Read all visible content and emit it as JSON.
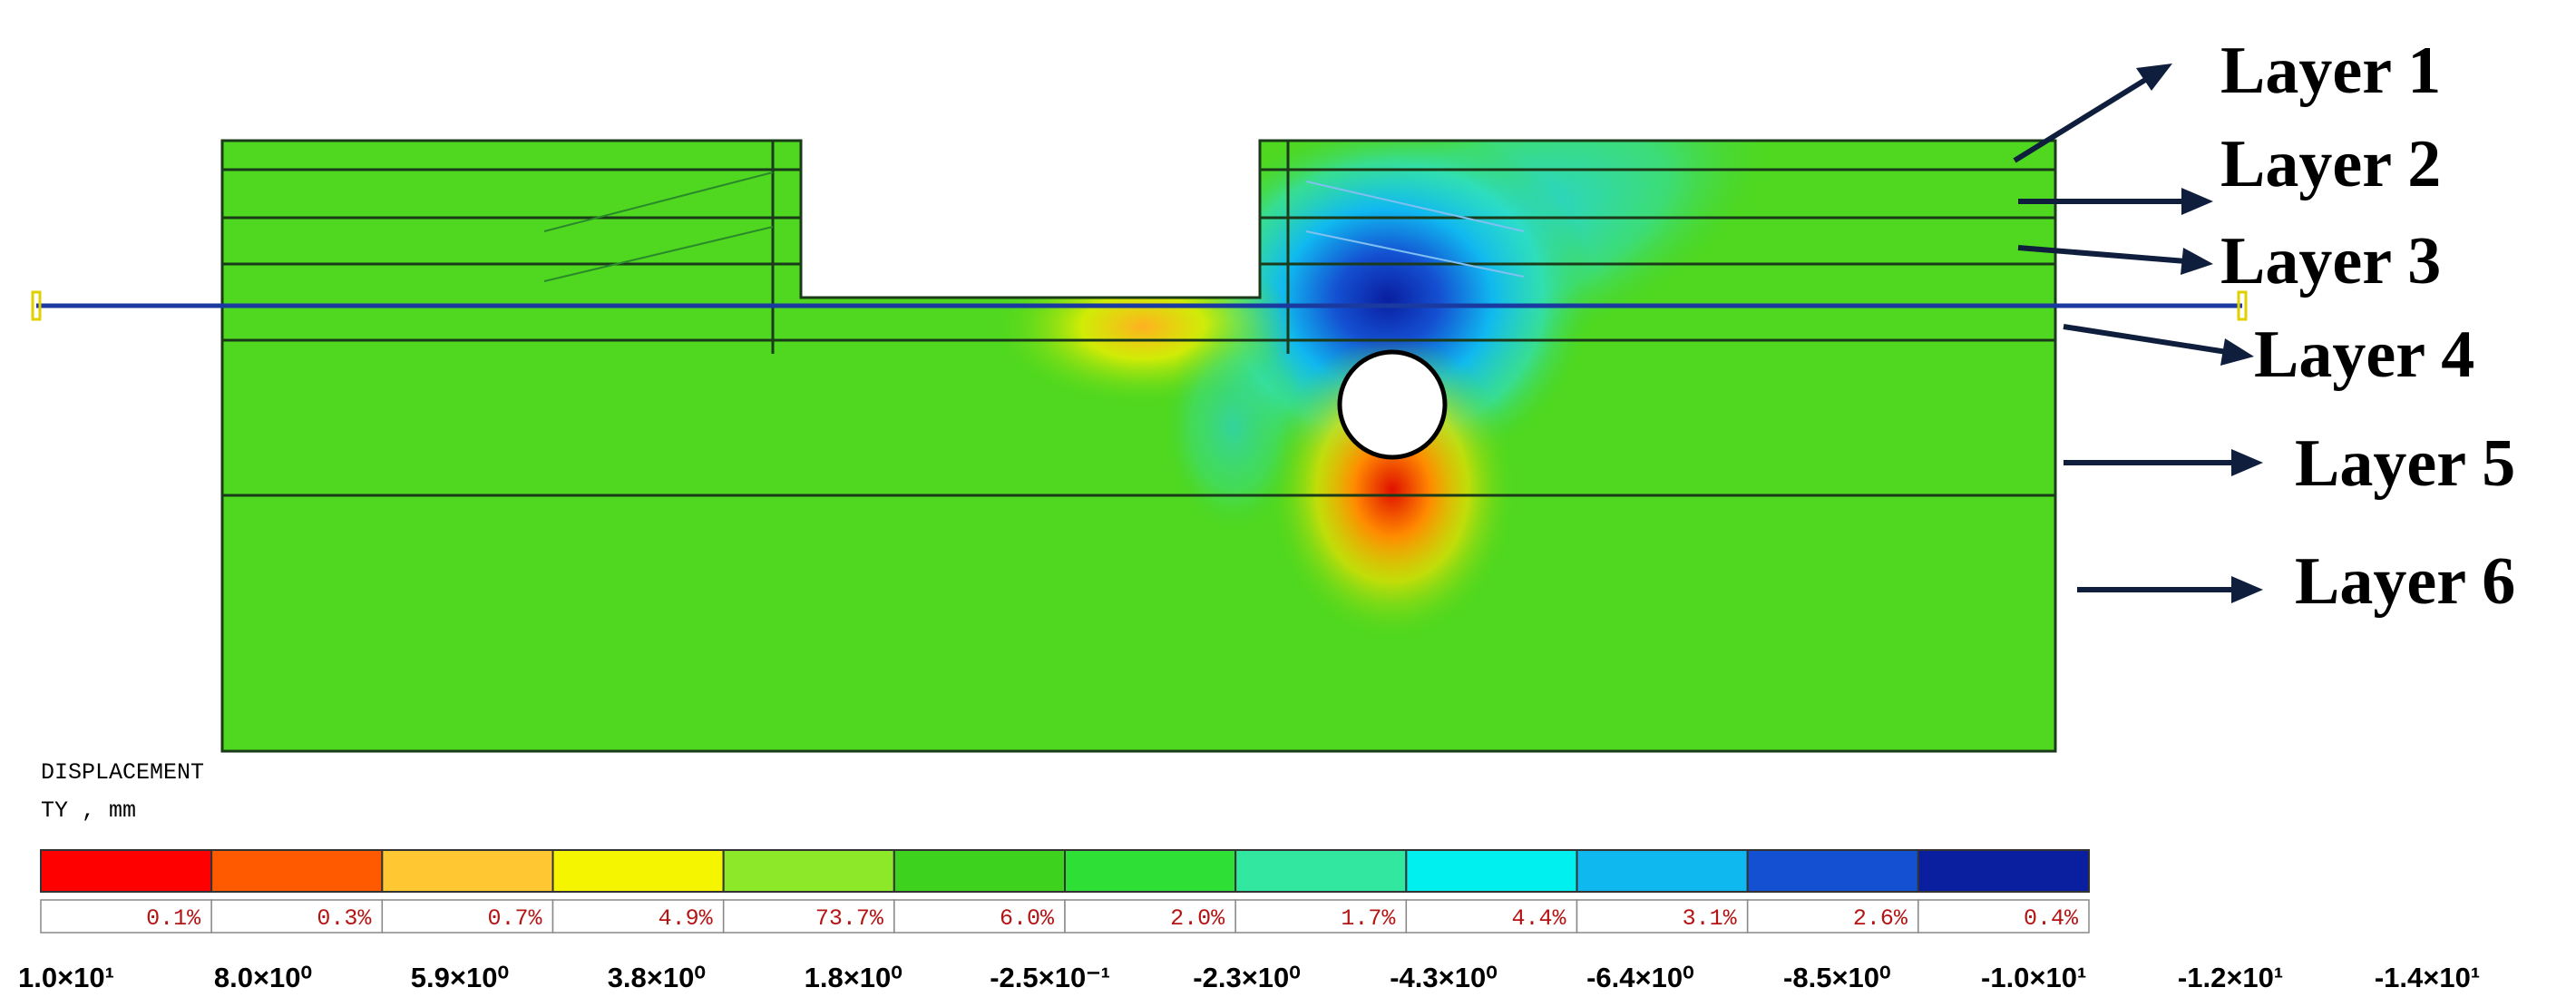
{
  "layers": [
    "Layer 1",
    "Layer 2",
    "Layer 3",
    "Layer 4",
    "Layer 5",
    "Layer 6"
  ],
  "legend": {
    "title": "DISPLACEMENT",
    "unit": "TY , mm",
    "bins": [
      {
        "percent": "0.1%",
        "color": "#ff0000"
      },
      {
        "percent": "0.3%",
        "color": "#ff5a00"
      },
      {
        "percent": "0.7%",
        "color": "#ffc832"
      },
      {
        "percent": "4.9%",
        "color": "#f5f500"
      },
      {
        "percent": "73.7%",
        "color": "#8ee82a"
      },
      {
        "percent": "6.0%",
        "color": "#3cd21e"
      },
      {
        "percent": "2.0%",
        "color": "#2ee036"
      },
      {
        "percent": "1.7%",
        "color": "#32e8a0"
      },
      {
        "percent": "4.4%",
        "color": "#00f0f0"
      },
      {
        "percent": "3.1%",
        "color": "#10b8f0"
      },
      {
        "percent": "2.6%",
        "color": "#1450d2"
      },
      {
        "percent": "0.4%",
        "color": "#0a1ea0"
      }
    ],
    "values": [
      "1.0×10¹",
      "8.0×10⁰",
      "5.9×10⁰",
      "3.8×10⁰",
      "1.8×10⁰",
      "-2.5×10⁻¹",
      "-2.3×10⁰",
      "-4.3×10⁰",
      "-6.4×10⁰",
      "-8.5×10⁰",
      "-1.0×10¹",
      "-1.2×10¹",
      "-1.4×10¹"
    ]
  }
}
